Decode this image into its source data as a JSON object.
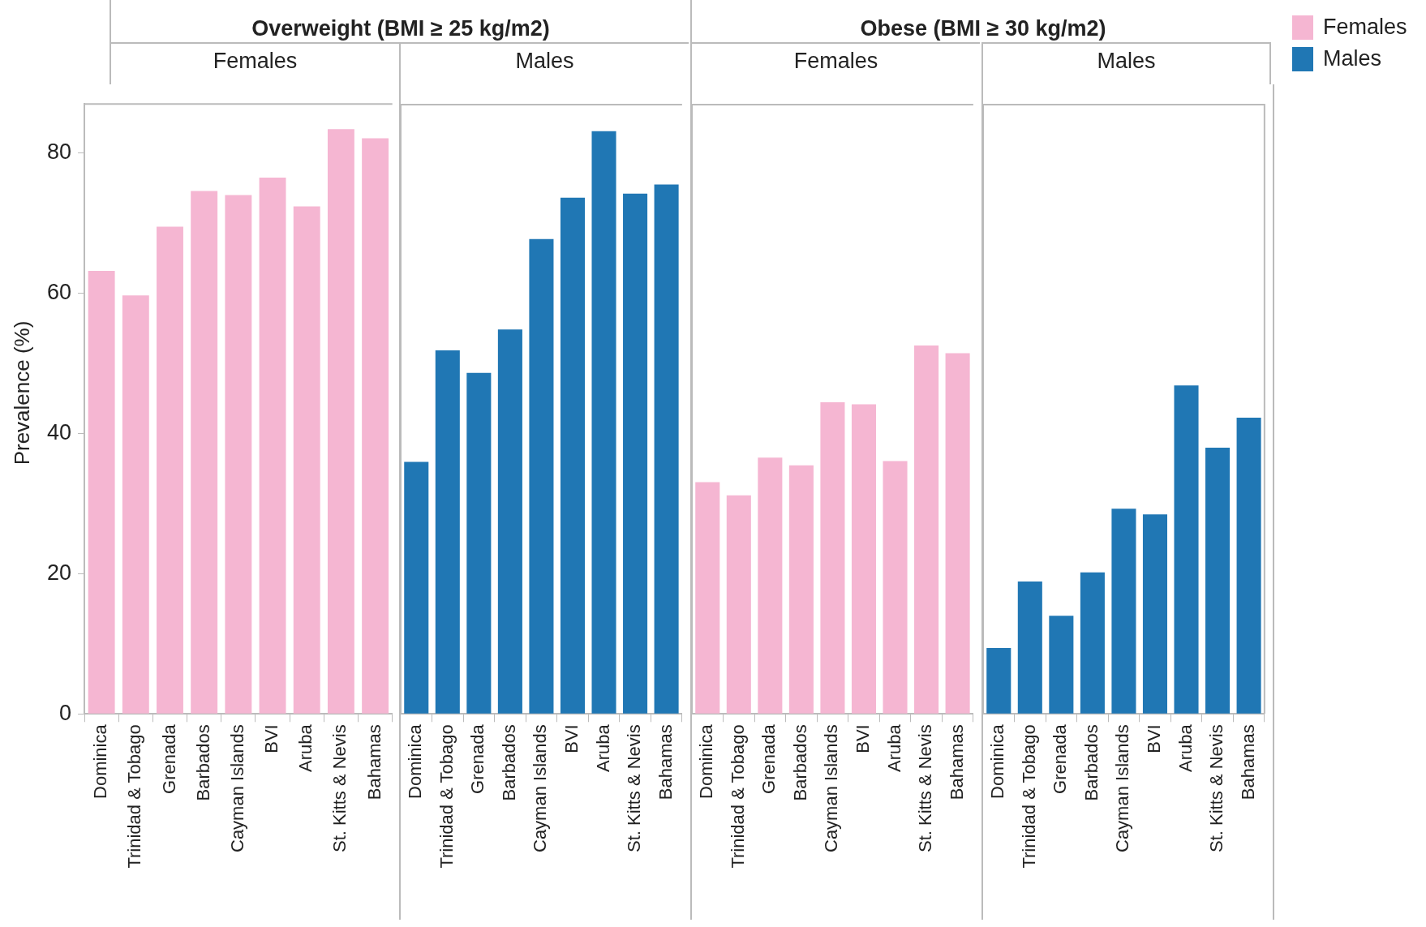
{
  "chart_data": [
    {
      "type": "bar",
      "title": "Overweight (BMI ≥ 25 kg/m2)",
      "subtitle": "Females",
      "ylabel": "Prevalence (%)",
      "categories": [
        "Dominica",
        "Trinidad & Tobago",
        "Grenada",
        "Barbados",
        "Cayman Islands",
        "BVI",
        "Aruba",
        "St. Kitts & Nevis",
        "Bahamas"
      ],
      "ylim": [
        0,
        87
      ],
      "yticks": [
        0,
        20,
        40,
        60,
        80
      ],
      "series": [
        {
          "color": "#f5b6d2",
          "values": [
            63.2,
            59.7,
            69.5,
            74.6,
            74.0,
            76.5,
            72.4,
            83.4,
            82.1
          ]
        }
      ]
    },
    {
      "type": "bar",
      "subtitle": "Males",
      "categories": [
        "Dominica",
        "Trinidad & Tobago",
        "Grenada",
        "Barbados",
        "Cayman Islands",
        "BVI",
        "Aruba",
        "St. Kitts & Nevis",
        "Bahamas"
      ],
      "ylim": [
        0,
        87
      ],
      "yticks": [
        0,
        20,
        40,
        60,
        80
      ],
      "tick_labels": "x",
      "series": [
        {
          "color": "#2077b4",
          "values": [
            36.0,
            51.9,
            48.7,
            54.9,
            67.8,
            73.7,
            83.2,
            74.3,
            75.6
          ]
        }
      ]
    },
    {
      "type": "bar",
      "title": "Obese (BMI ≥ 30 kg/m2)",
      "subtitle": "Females",
      "categories": [
        "Dominica",
        "Trinidad & Tobago",
        "Grenada",
        "Barbados",
        "Cayman Islands",
        "BVI",
        "Aruba",
        "St. Kitts & Nevis",
        "Bahamas"
      ],
      "ylim": [
        0,
        87
      ],
      "yticks": [
        0,
        20,
        40,
        60,
        80
      ],
      "tick_labels": "x",
      "legend": "right",
      "series": [
        {
          "name": "Females",
          "color": "#f5b6d2",
          "values": [
            33.1,
            31.2,
            36.6,
            35.5,
            44.5,
            44.2,
            36.1,
            52.6,
            51.5
          ]
        }
      ]
    },
    {
      "type": "bar",
      "subtitle": "Males",
      "categories": [
        "Dominica",
        "Trinidad & Tobago",
        "Grenada",
        "Barbados",
        "Cayman Islands",
        "BVI",
        "Aruba",
        "St. Kitts & Nevis",
        "Bahamas"
      ],
      "ylim": [
        0,
        87
      ],
      "yticks": [
        0,
        20,
        40,
        60,
        80
      ],
      "tick_labels": "x",
      "legend": "right",
      "series": [
        {
          "name": "Males",
          "color": "#2077b4",
          "values": [
            9.4,
            18.9,
            14.0,
            20.2,
            29.3,
            28.5,
            46.9,
            38.0,
            42.3
          ]
        }
      ]
    }
  ]
}
